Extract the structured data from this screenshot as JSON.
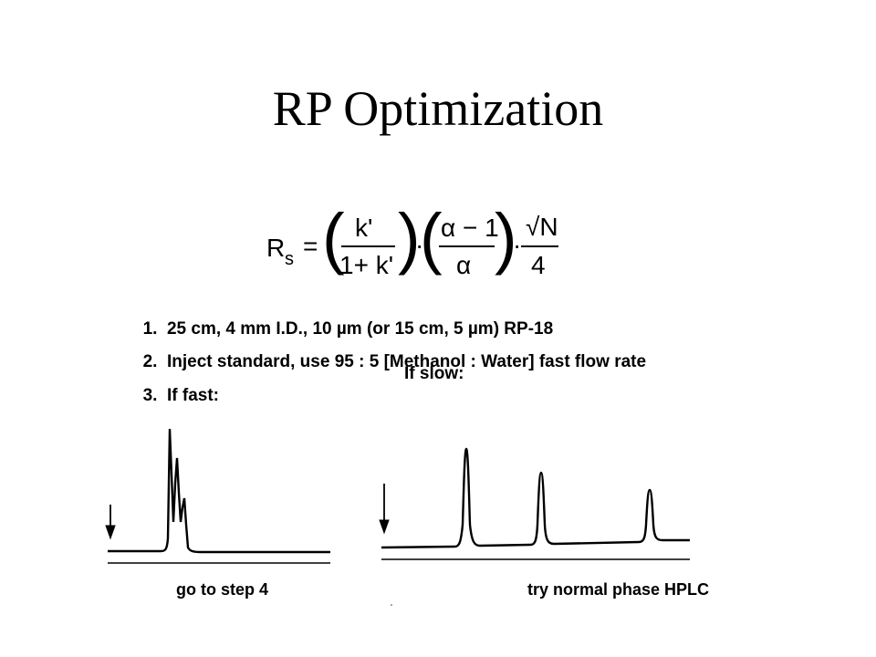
{
  "title": "RP Optimization",
  "equation": {
    "lhs": "R",
    "lhs_sub": "s",
    "equals": "=",
    "frac1_num": "k'",
    "frac1_den": "1+ k'",
    "dot": "·",
    "frac2_num": "α − 1",
    "frac2_den": "α",
    "frac3_num": "√N",
    "frac3_den": "4"
  },
  "steps": [
    {
      "num": "1.",
      "text": "25 cm, 4 mm I.D., 10 µm (or 15 cm, 5 µm) RP-18"
    },
    {
      "num": "2.",
      "text": "Inject standard, use 95 : 5 [Methanol : Water] fast flow rate"
    },
    {
      "num": "3.",
      "text": "If fast:"
    }
  ],
  "if_slow": "If slow:",
  "captions": {
    "fast": "go to step 4",
    "slow": "try normal phase HPLC"
  }
}
